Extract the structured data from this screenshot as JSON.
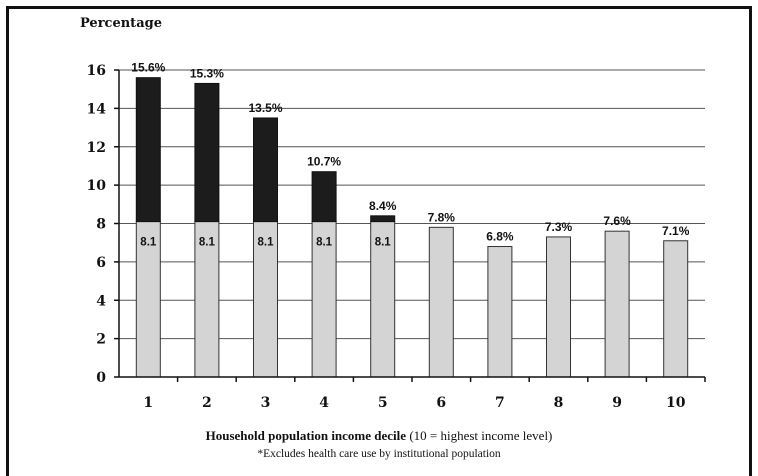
{
  "chart_data": {
    "type": "bar",
    "stacked": true,
    "ylabel": "Percentage",
    "xlabel_bold": "Household population income decile",
    "xlabel_rest": "(10 = highest income level)",
    "footnote": "*Excludes health care use by institutional population",
    "ylim": [
      0,
      16
    ],
    "yticks": [
      "0",
      "2",
      "4",
      "6",
      "8",
      "10",
      "12",
      "14",
      "16"
    ],
    "categories": [
      "1",
      "2",
      "3",
      "4",
      "5",
      "6",
      "7",
      "8",
      "9",
      "10"
    ],
    "totals": [
      15.6,
      15.3,
      13.5,
      10.7,
      8.4,
      7.8,
      6.8,
      7.3,
      7.6,
      7.1
    ],
    "total_labels": [
      "15.6%",
      "15.3%",
      "13.5%",
      "10.7%",
      "8.4%",
      "7.8%",
      "6.8%",
      "7.3%",
      "7.6%",
      "7.1%"
    ],
    "base_value": 8.1,
    "base_labels": [
      "8.1",
      "8.1",
      "8.1",
      "8.1",
      "8.1",
      "",
      "",
      "",
      "",
      ""
    ],
    "colors": {
      "base": "#d4d4d4",
      "top": "#1c1c1c",
      "grid": "#555555",
      "axis": "#111111"
    },
    "grid": true
  }
}
